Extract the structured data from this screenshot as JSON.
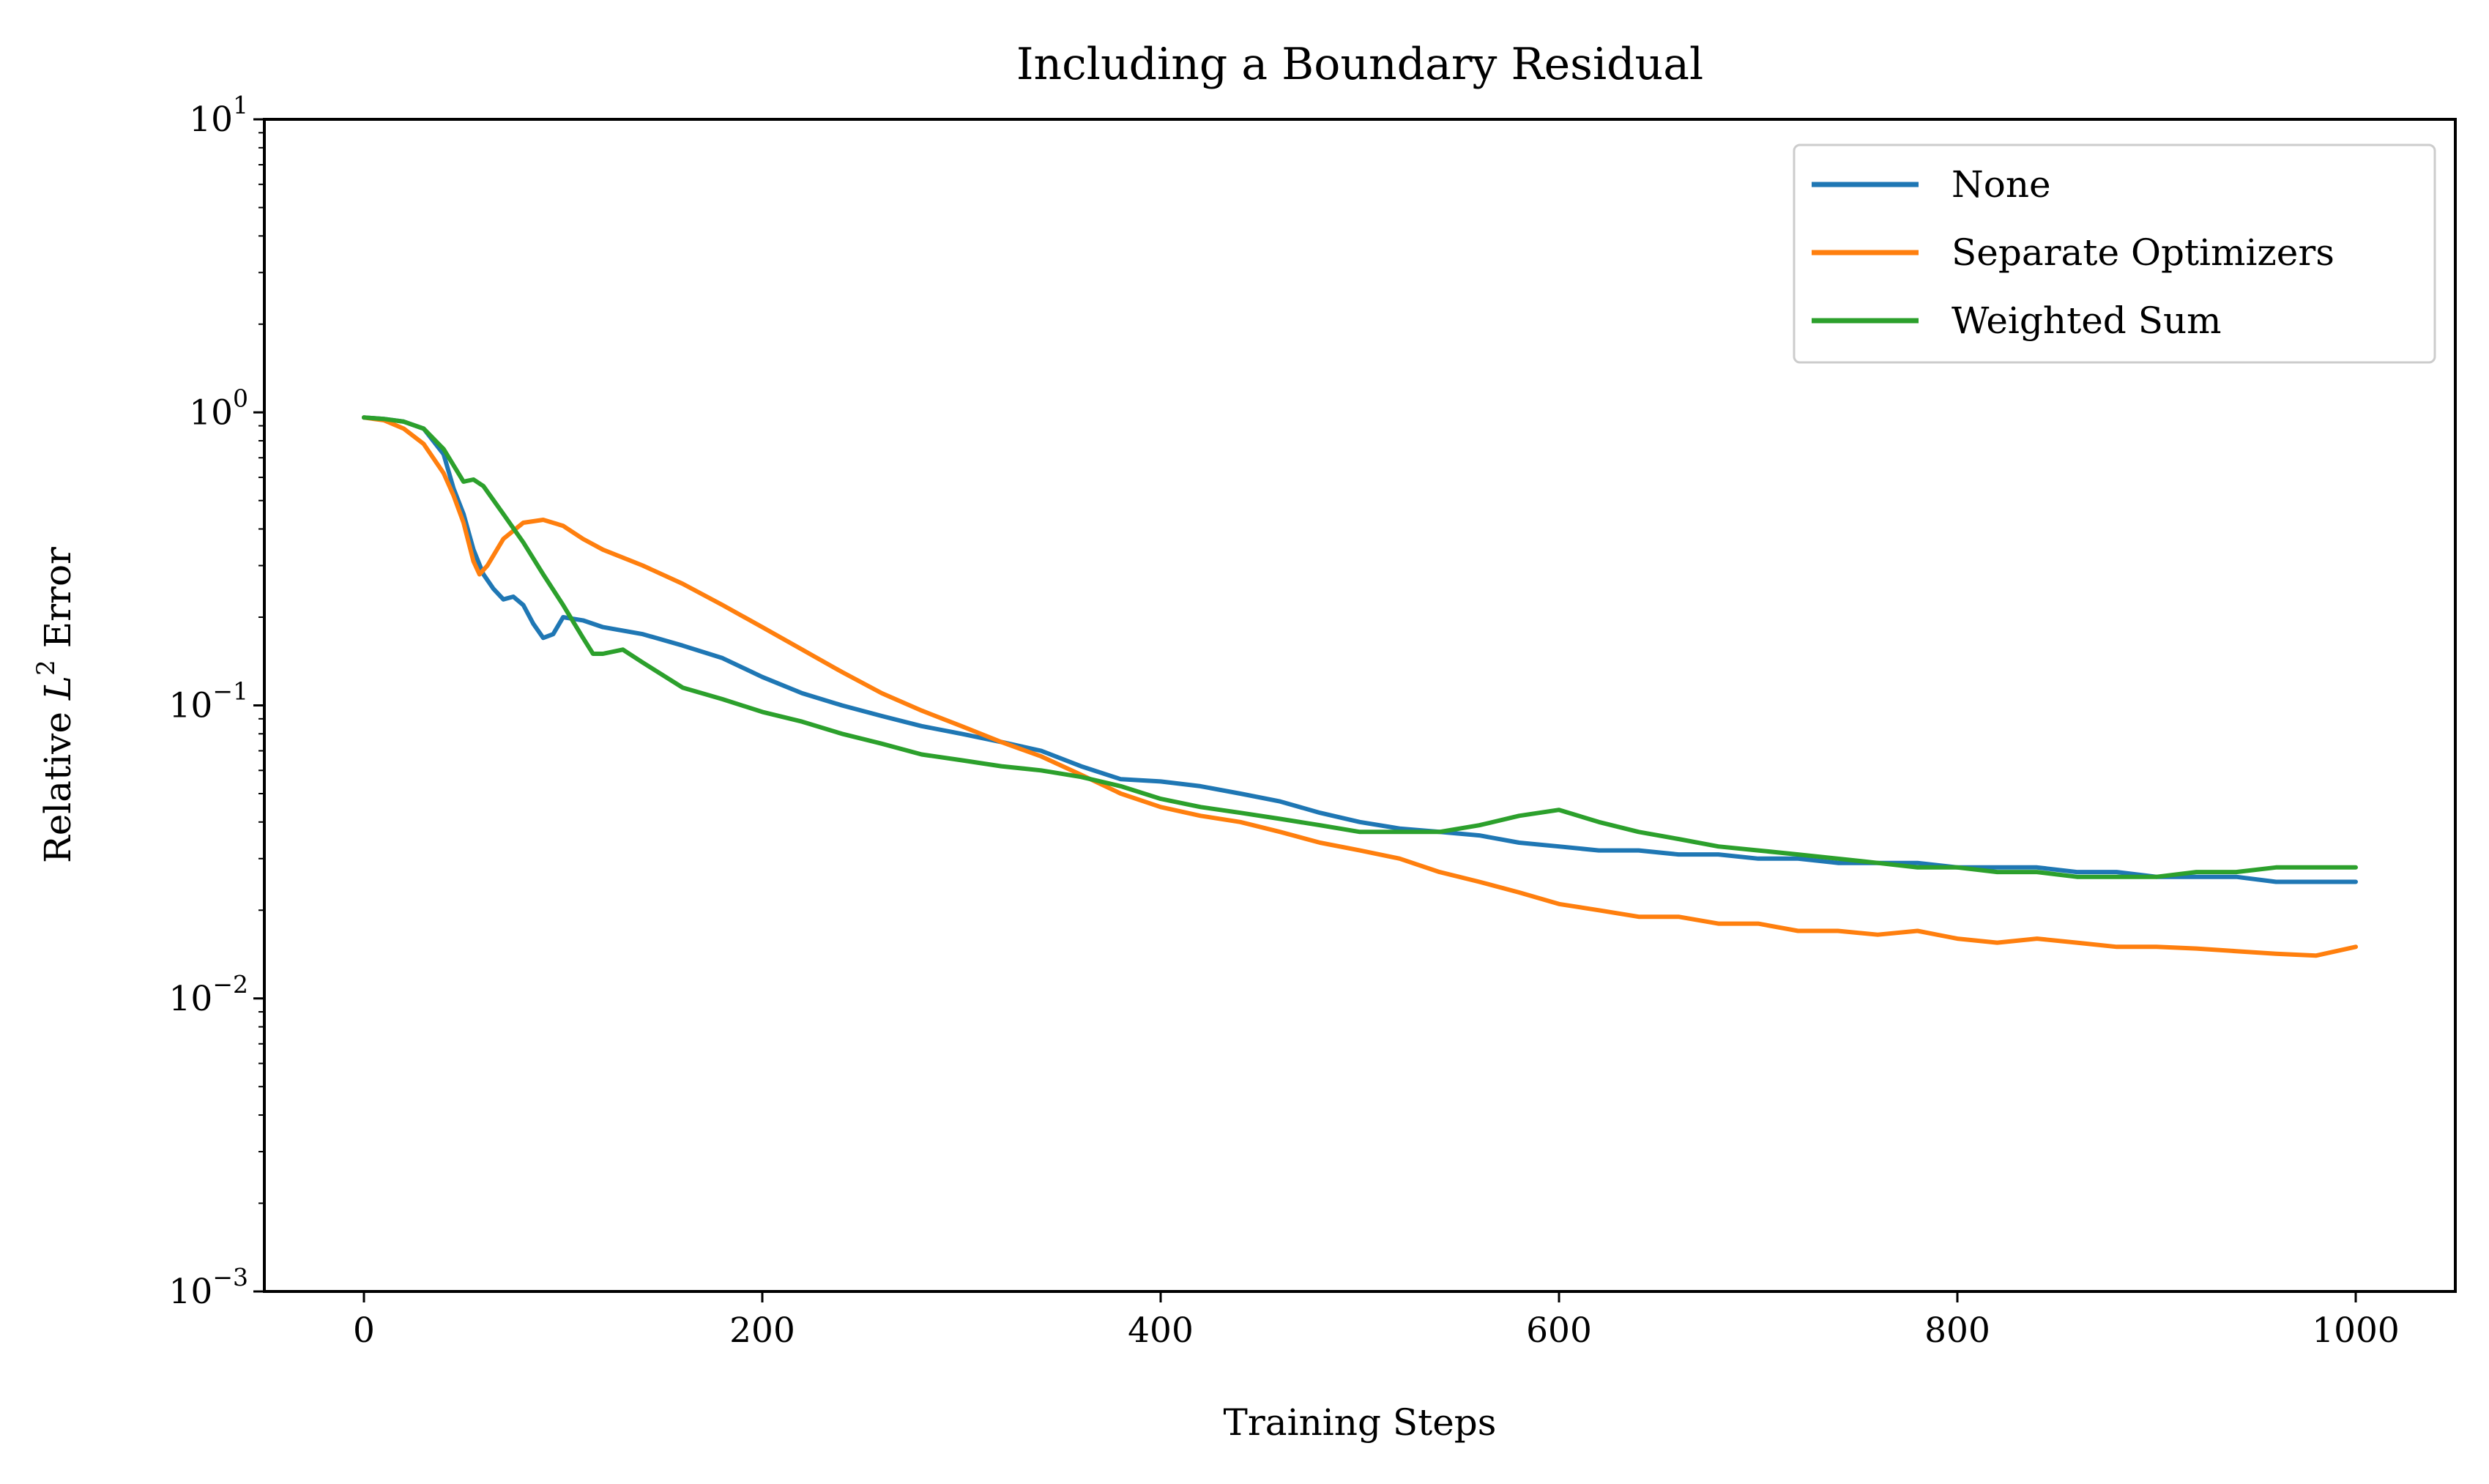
{
  "chart_data": {
    "type": "line",
    "title": "Including a Boundary Residual",
    "xlabel": "Training Steps",
    "ylabel": "Relative L² Error",
    "ylabel_parts": {
      "prefix": "Relative ",
      "symbol": "L",
      "superscript": "2",
      "suffix": " Error"
    },
    "y_scale": "log",
    "xlim": [
      -50,
      1050
    ],
    "ylim": [
      0.001,
      10
    ],
    "x_ticks": [
      {
        "value": 0,
        "label": "0"
      },
      {
        "value": 200,
        "label": "200"
      },
      {
        "value": 400,
        "label": "400"
      },
      {
        "value": 600,
        "label": "600"
      },
      {
        "value": 800,
        "label": "800"
      },
      {
        "value": 1000,
        "label": "1000"
      }
    ],
    "y_ticks": [
      {
        "value": 0.001,
        "base": "10",
        "exp": "−3"
      },
      {
        "value": 0.01,
        "base": "10",
        "exp": "−2"
      },
      {
        "value": 0.1,
        "base": "10",
        "exp": "−1"
      },
      {
        "value": 1,
        "base": "10",
        "exp": "0"
      },
      {
        "value": 10,
        "base": "10",
        "exp": "1"
      }
    ],
    "grid": false,
    "legend_position": "top-right",
    "series": [
      {
        "name": "None",
        "color": "#1f77b4",
        "points": [
          [
            0,
            0.96
          ],
          [
            10,
            0.95
          ],
          [
            20,
            0.93
          ],
          [
            30,
            0.88
          ],
          [
            40,
            0.72
          ],
          [
            45,
            0.55
          ],
          [
            50,
            0.45
          ],
          [
            55,
            0.34
          ],
          [
            60,
            0.28
          ],
          [
            65,
            0.25
          ],
          [
            70,
            0.23
          ],
          [
            75,
            0.235
          ],
          [
            80,
            0.22
          ],
          [
            85,
            0.19
          ],
          [
            90,
            0.17
          ],
          [
            95,
            0.175
          ],
          [
            100,
            0.2
          ],
          [
            110,
            0.195
          ],
          [
            120,
            0.185
          ],
          [
            140,
            0.175
          ],
          [
            160,
            0.16
          ],
          [
            180,
            0.145
          ],
          [
            200,
            0.125
          ],
          [
            220,
            0.11
          ],
          [
            240,
            0.1
          ],
          [
            260,
            0.092
          ],
          [
            280,
            0.085
          ],
          [
            300,
            0.08
          ],
          [
            320,
            0.075
          ],
          [
            340,
            0.07
          ],
          [
            360,
            0.062
          ],
          [
            380,
            0.056
          ],
          [
            400,
            0.055
          ],
          [
            420,
            0.053
          ],
          [
            440,
            0.05
          ],
          [
            460,
            0.047
          ],
          [
            480,
            0.043
          ],
          [
            500,
            0.04
          ],
          [
            520,
            0.038
          ],
          [
            540,
            0.037
          ],
          [
            560,
            0.036
          ],
          [
            580,
            0.034
          ],
          [
            600,
            0.033
          ],
          [
            620,
            0.032
          ],
          [
            640,
            0.032
          ],
          [
            660,
            0.031
          ],
          [
            680,
            0.031
          ],
          [
            700,
            0.03
          ],
          [
            720,
            0.03
          ],
          [
            740,
            0.029
          ],
          [
            760,
            0.029
          ],
          [
            780,
            0.029
          ],
          [
            800,
            0.028
          ],
          [
            820,
            0.028
          ],
          [
            840,
            0.028
          ],
          [
            860,
            0.027
          ],
          [
            880,
            0.027
          ],
          [
            900,
            0.026
          ],
          [
            920,
            0.026
          ],
          [
            940,
            0.026
          ],
          [
            960,
            0.025
          ],
          [
            980,
            0.025
          ],
          [
            1000,
            0.025
          ]
        ]
      },
      {
        "name": "Separate Optimizers",
        "color": "#ff7f0e",
        "points": [
          [
            0,
            0.96
          ],
          [
            10,
            0.94
          ],
          [
            20,
            0.88
          ],
          [
            30,
            0.78
          ],
          [
            40,
            0.62
          ],
          [
            45,
            0.52
          ],
          [
            50,
            0.42
          ],
          [
            55,
            0.31
          ],
          [
            58,
            0.28
          ],
          [
            62,
            0.3
          ],
          [
            70,
            0.37
          ],
          [
            80,
            0.42
          ],
          [
            90,
            0.43
          ],
          [
            100,
            0.41
          ],
          [
            110,
            0.37
          ],
          [
            120,
            0.34
          ],
          [
            140,
            0.3
          ],
          [
            160,
            0.26
          ],
          [
            180,
            0.22
          ],
          [
            200,
            0.185
          ],
          [
            220,
            0.155
          ],
          [
            240,
            0.13
          ],
          [
            260,
            0.11
          ],
          [
            280,
            0.096
          ],
          [
            300,
            0.085
          ],
          [
            320,
            0.075
          ],
          [
            340,
            0.067
          ],
          [
            360,
            0.058
          ],
          [
            380,
            0.05
          ],
          [
            400,
            0.045
          ],
          [
            420,
            0.042
          ],
          [
            440,
            0.04
          ],
          [
            460,
            0.037
          ],
          [
            480,
            0.034
          ],
          [
            500,
            0.032
          ],
          [
            520,
            0.03
          ],
          [
            540,
            0.027
          ],
          [
            560,
            0.025
          ],
          [
            580,
            0.023
          ],
          [
            600,
            0.021
          ],
          [
            620,
            0.02
          ],
          [
            640,
            0.019
          ],
          [
            660,
            0.019
          ],
          [
            680,
            0.018
          ],
          [
            700,
            0.018
          ],
          [
            720,
            0.017
          ],
          [
            740,
            0.017
          ],
          [
            760,
            0.0165
          ],
          [
            780,
            0.017
          ],
          [
            800,
            0.016
          ],
          [
            820,
            0.0155
          ],
          [
            840,
            0.016
          ],
          [
            860,
            0.0155
          ],
          [
            880,
            0.015
          ],
          [
            900,
            0.015
          ],
          [
            920,
            0.0148
          ],
          [
            940,
            0.0145
          ],
          [
            960,
            0.0142
          ],
          [
            980,
            0.014
          ],
          [
            1000,
            0.015
          ]
        ]
      },
      {
        "name": "Weighted Sum",
        "color": "#2ca02c",
        "points": [
          [
            0,
            0.96
          ],
          [
            10,
            0.95
          ],
          [
            20,
            0.93
          ],
          [
            30,
            0.88
          ],
          [
            40,
            0.75
          ],
          [
            50,
            0.58
          ],
          [
            55,
            0.59
          ],
          [
            60,
            0.56
          ],
          [
            70,
            0.45
          ],
          [
            80,
            0.36
          ],
          [
            90,
            0.28
          ],
          [
            100,
            0.22
          ],
          [
            110,
            0.17
          ],
          [
            115,
            0.15
          ],
          [
            120,
            0.15
          ],
          [
            130,
            0.155
          ],
          [
            140,
            0.14
          ],
          [
            160,
            0.115
          ],
          [
            180,
            0.105
          ],
          [
            200,
            0.095
          ],
          [
            220,
            0.088
          ],
          [
            240,
            0.08
          ],
          [
            260,
            0.074
          ],
          [
            280,
            0.068
          ],
          [
            300,
            0.065
          ],
          [
            320,
            0.062
          ],
          [
            340,
            0.06
          ],
          [
            360,
            0.057
          ],
          [
            380,
            0.053
          ],
          [
            400,
            0.048
          ],
          [
            420,
            0.045
          ],
          [
            440,
            0.043
          ],
          [
            460,
            0.041
          ],
          [
            480,
            0.039
          ],
          [
            500,
            0.037
          ],
          [
            520,
            0.037
          ],
          [
            540,
            0.037
          ],
          [
            560,
            0.039
          ],
          [
            580,
            0.042
          ],
          [
            600,
            0.044
          ],
          [
            620,
            0.04
          ],
          [
            640,
            0.037
          ],
          [
            660,
            0.035
          ],
          [
            680,
            0.033
          ],
          [
            700,
            0.032
          ],
          [
            720,
            0.031
          ],
          [
            740,
            0.03
          ],
          [
            760,
            0.029
          ],
          [
            780,
            0.028
          ],
          [
            800,
            0.028
          ],
          [
            820,
            0.027
          ],
          [
            840,
            0.027
          ],
          [
            860,
            0.026
          ],
          [
            880,
            0.026
          ],
          [
            900,
            0.026
          ],
          [
            920,
            0.027
          ],
          [
            940,
            0.027
          ],
          [
            960,
            0.028
          ],
          [
            980,
            0.028
          ],
          [
            1000,
            0.028
          ]
        ]
      }
    ]
  }
}
